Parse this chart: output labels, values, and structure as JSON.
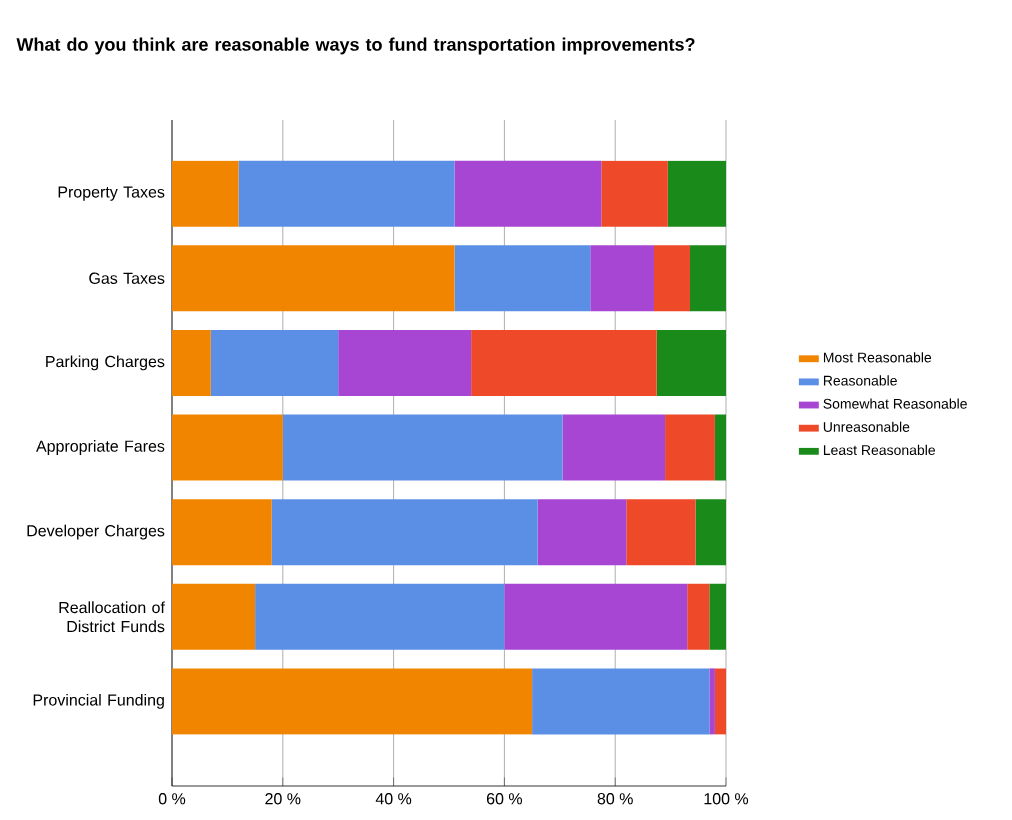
{
  "chart_data": {
    "type": "bar",
    "orientation": "horizontal",
    "stacked": true,
    "title": "What do you think are reasonable ways to fund transportation improvements?",
    "categories": [
      "Property Taxes",
      "Gas Taxes",
      "Parking Charges",
      "Appropriate Fares",
      "Developer Charges",
      "Reallocation of District Funds",
      "Provincial Funding"
    ],
    "series": [
      {
        "name": "Most Reasonable",
        "color": "#f28500",
        "values": [
          12,
          51,
          7,
          20,
          18,
          15,
          65
        ]
      },
      {
        "name": "Reasonable",
        "color": "#5b8fe6",
        "values": [
          39,
          24.5,
          23,
          50.5,
          48,
          45,
          32
        ]
      },
      {
        "name": "Somewhat Reasonable",
        "color": "#a846d4",
        "values": [
          26.5,
          11.5,
          24,
          18.5,
          16,
          33,
          1
        ]
      },
      {
        "name": "Unreasonable",
        "color": "#ee4a2a",
        "values": [
          12,
          6.5,
          33.5,
          9,
          12.5,
          4,
          2
        ]
      },
      {
        "name": "Least Reasonable",
        "color": "#1a8a1a",
        "values": [
          10.5,
          6.5,
          12.5,
          2,
          5.5,
          3,
          0
        ]
      }
    ],
    "xlim": [
      0,
      100
    ],
    "xticks": [
      {
        "value": 0,
        "label": "0 %"
      },
      {
        "value": 20,
        "label": "20 %"
      },
      {
        "value": 40,
        "label": "40 %"
      },
      {
        "value": 60,
        "label": "60 %"
      },
      {
        "value": 80,
        "label": "80 %"
      },
      {
        "value": 100,
        "label": "100 %"
      }
    ],
    "grid": "x",
    "legend": "right"
  }
}
